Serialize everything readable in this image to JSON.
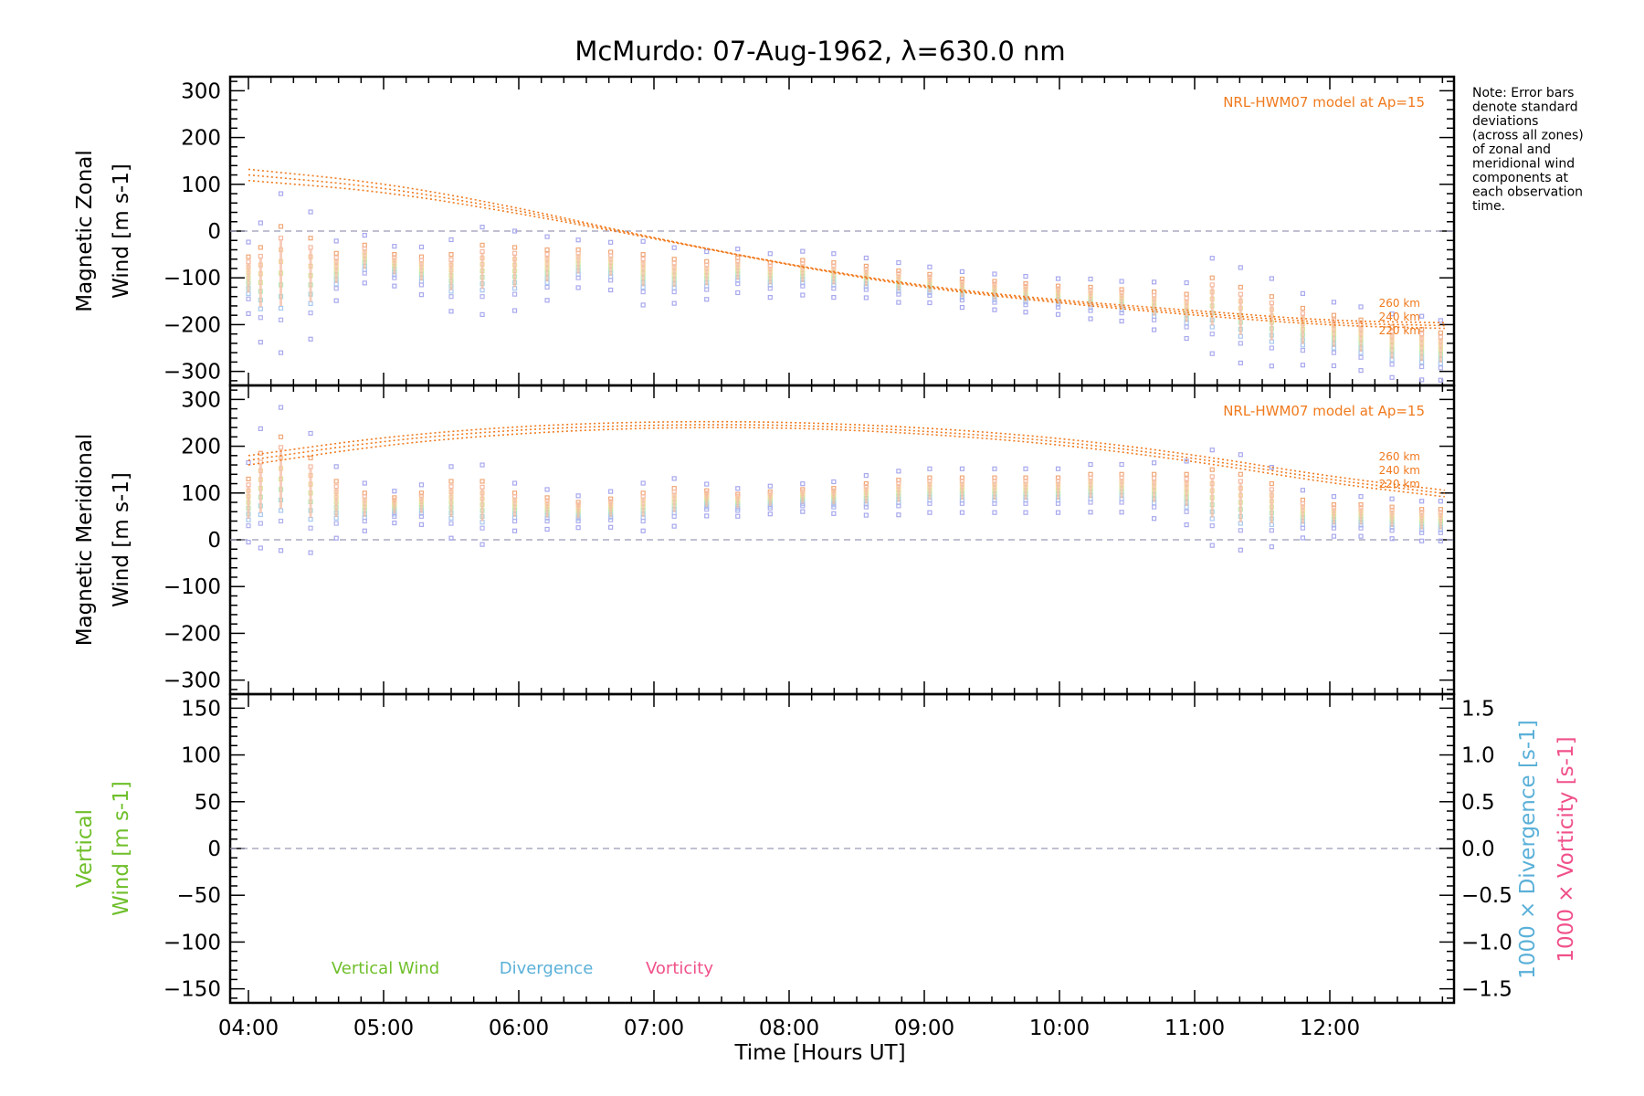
{
  "title": "McMurdo: 07-Aug-1962, λ=630.0 nm",
  "note": [
    "Note: Error bars",
    "denote standard",
    "deviations",
    "(across all zones)",
    "of zonal and",
    "meridional wind",
    "components at",
    "each observation",
    "time."
  ],
  "colors": {
    "model": "#f07a1e",
    "vertical": "#6fbf2a",
    "divergence": "#5ab0d8",
    "vorticity": "#f0508a",
    "zero_line": "#9a9ab8",
    "err_outer": "#a8a8ee"
  },
  "chart_data": [
    {
      "id": "zonal",
      "type": "scatter",
      "ylabel_lines": [
        "Magnetic Zonal",
        "Wind [m s-1]"
      ],
      "ylim": [
        -330,
        330
      ],
      "yticks": [
        -300,
        -200,
        -100,
        0,
        100,
        200,
        300
      ],
      "xlim": [
        4.0,
        12.85
      ],
      "model_label": "NRL-HWM07 model at Ap=15",
      "model_alt_labels": [
        "260 km",
        "240 km",
        "220 km"
      ],
      "model_curves": [
        {
          "name": "260 km",
          "x": [
            4.0,
            5.0,
            6.0,
            7.0,
            8.0,
            9.0,
            10.0,
            11.0,
            12.0,
            12.85
          ],
          "y": [
            132,
            103,
            50,
            -15,
            -72,
            -118,
            -148,
            -170,
            -192,
            -196
          ]
        },
        {
          "name": "240 km",
          "x": [
            4.0,
            5.0,
            6.0,
            7.0,
            8.0,
            9.0,
            10.0,
            11.0,
            12.0,
            12.85
          ],
          "y": [
            120,
            94,
            44,
            -15,
            -72,
            -120,
            -151,
            -175,
            -197,
            -202
          ]
        },
        {
          "name": "220 km",
          "x": [
            4.0,
            5.0,
            6.0,
            7.0,
            8.0,
            9.0,
            10.0,
            11.0,
            12.0,
            12.85
          ],
          "y": [
            108,
            85,
            38,
            -16,
            -73,
            -122,
            -154,
            -180,
            -202,
            -208
          ]
        }
      ],
      "observations": {
        "x": [
          4.0,
          4.09,
          4.24,
          4.46,
          4.65,
          4.86,
          5.08,
          5.28,
          5.5,
          5.73,
          5.97,
          6.21,
          6.44,
          6.68,
          6.92,
          7.15,
          7.39,
          7.62,
          7.86,
          8.1,
          8.33,
          8.57,
          8.81,
          9.04,
          9.28,
          9.52,
          9.75,
          9.99,
          10.23,
          10.46,
          10.7,
          10.94,
          11.13,
          11.34,
          11.57,
          11.8,
          12.03,
          12.23,
          12.46,
          12.68,
          12.82
        ],
        "y": [
          -100,
          -110,
          -90,
          -95,
          -85,
          -60,
          -75,
          -85,
          -95,
          -85,
          -85,
          -80,
          -70,
          -75,
          -90,
          -95,
          -95,
          -85,
          -95,
          -90,
          -95,
          -100,
          -110,
          -115,
          -125,
          -130,
          -135,
          -140,
          -145,
          -150,
          -160,
          -170,
          -160,
          -180,
          -195,
          -210,
          -220,
          -230,
          -245,
          -250,
          -255
        ],
        "spread": [
          90,
          150,
          200,
          160,
          75,
          60,
          50,
          60,
          90,
          110,
          100,
          80,
          60,
          60,
          80,
          70,
          60,
          55,
          55,
          55,
          55,
          50,
          50,
          45,
          45,
          45,
          45,
          45,
          50,
          50,
          60,
          70,
          120,
          120,
          110,
          90,
          80,
          80,
          80,
          80,
          75
        ]
      }
    },
    {
      "id": "meridional",
      "type": "scatter",
      "ylabel_lines": [
        "Magnetic Meridional",
        "Wind [m s-1]"
      ],
      "ylim": [
        -330,
        330
      ],
      "yticks": [
        -300,
        -200,
        -100,
        0,
        100,
        200,
        300
      ],
      "xlim": [
        4.0,
        12.85
      ],
      "model_label": "NRL-HWM07 model at Ap=15",
      "model_alt_labels": [
        "260 km",
        "240 km",
        "220 km"
      ],
      "model_curves": [
        {
          "name": "260 km",
          "x": [
            4.0,
            5.0,
            6.0,
            7.0,
            8.0,
            9.0,
            10.0,
            11.0,
            12.0,
            12.85
          ],
          "y": [
            180,
            220,
            243,
            253,
            252,
            240,
            218,
            182,
            135,
            106
          ]
        },
        {
          "name": "240 km",
          "x": [
            4.0,
            5.0,
            6.0,
            7.0,
            8.0,
            9.0,
            10.0,
            11.0,
            12.0,
            12.85
          ],
          "y": [
            170,
            212,
            236,
            246,
            246,
            233,
            211,
            175,
            128,
            99
          ]
        },
        {
          "name": "220 km",
          "x": [
            4.0,
            5.0,
            6.0,
            7.0,
            8.0,
            9.0,
            10.0,
            11.0,
            12.0,
            12.85
          ],
          "y": [
            160,
            203,
            228,
            240,
            240,
            227,
            204,
            168,
            121,
            92
          ]
        }
      ],
      "observations": {
        "x": [
          4.0,
          4.09,
          4.24,
          4.46,
          4.65,
          4.86,
          5.08,
          5.28,
          5.5,
          5.73,
          5.97,
          6.21,
          6.44,
          6.68,
          6.92,
          7.15,
          7.39,
          7.62,
          7.86,
          8.1,
          8.33,
          8.57,
          8.81,
          9.04,
          9.28,
          9.52,
          9.75,
          9.99,
          10.23,
          10.46,
          10.7,
          10.94,
          11.13,
          11.34,
          11.57,
          11.8,
          12.03,
          12.23,
          12.46,
          12.68,
          12.82
        ],
        "y": [
          80,
          110,
          130,
          100,
          80,
          70,
          70,
          75,
          80,
          75,
          70,
          65,
          60,
          65,
          70,
          80,
          85,
          80,
          85,
          90,
          90,
          95,
          100,
          105,
          105,
          105,
          105,
          105,
          110,
          110,
          105,
          100,
          90,
          80,
          70,
          55,
          50,
          50,
          45,
          40,
          40
        ],
        "spread": [
          100,
          150,
          180,
          150,
          90,
          60,
          40,
          50,
          90,
          100,
          60,
          50,
          40,
          45,
          60,
          60,
          40,
          35,
          35,
          35,
          40,
          50,
          55,
          55,
          55,
          55,
          55,
          55,
          60,
          60,
          70,
          80,
          120,
          120,
          100,
          60,
          50,
          50,
          50,
          50,
          50
        ]
      }
    },
    {
      "id": "vertical",
      "type": "line",
      "ylabel_lines": [
        "Vertical",
        "Wind [m s-1]"
      ],
      "ylim": [
        -165,
        165
      ],
      "yticks": [
        -150,
        -100,
        -50,
        0,
        50,
        100,
        150
      ],
      "y2label_lines": [
        "1000 × Divergence [s-1]",
        "1000 × Vorticity [s-1]"
      ],
      "y2lim": [
        -1.65,
        1.65
      ],
      "y2ticks": [
        "−1.5",
        "−1.0",
        "−0.5",
        "0.0",
        "0.5",
        "1.0",
        "1.5"
      ],
      "y2tick_values": [
        -1.5,
        -1.0,
        -0.5,
        0.0,
        0.5,
        1.0,
        1.5
      ],
      "xlim": [
        4.0,
        12.85
      ],
      "xticks": [
        "04:00",
        "05:00",
        "06:00",
        "07:00",
        "08:00",
        "09:00",
        "10:00",
        "11:00",
        "12:00"
      ],
      "xtick_values": [
        4,
        5,
        6,
        7,
        8,
        9,
        10,
        11,
        12
      ],
      "xlabel": "Time [Hours UT]",
      "legend": [
        "Vertical Wind",
        "Divergence",
        "Vorticity"
      ]
    }
  ]
}
